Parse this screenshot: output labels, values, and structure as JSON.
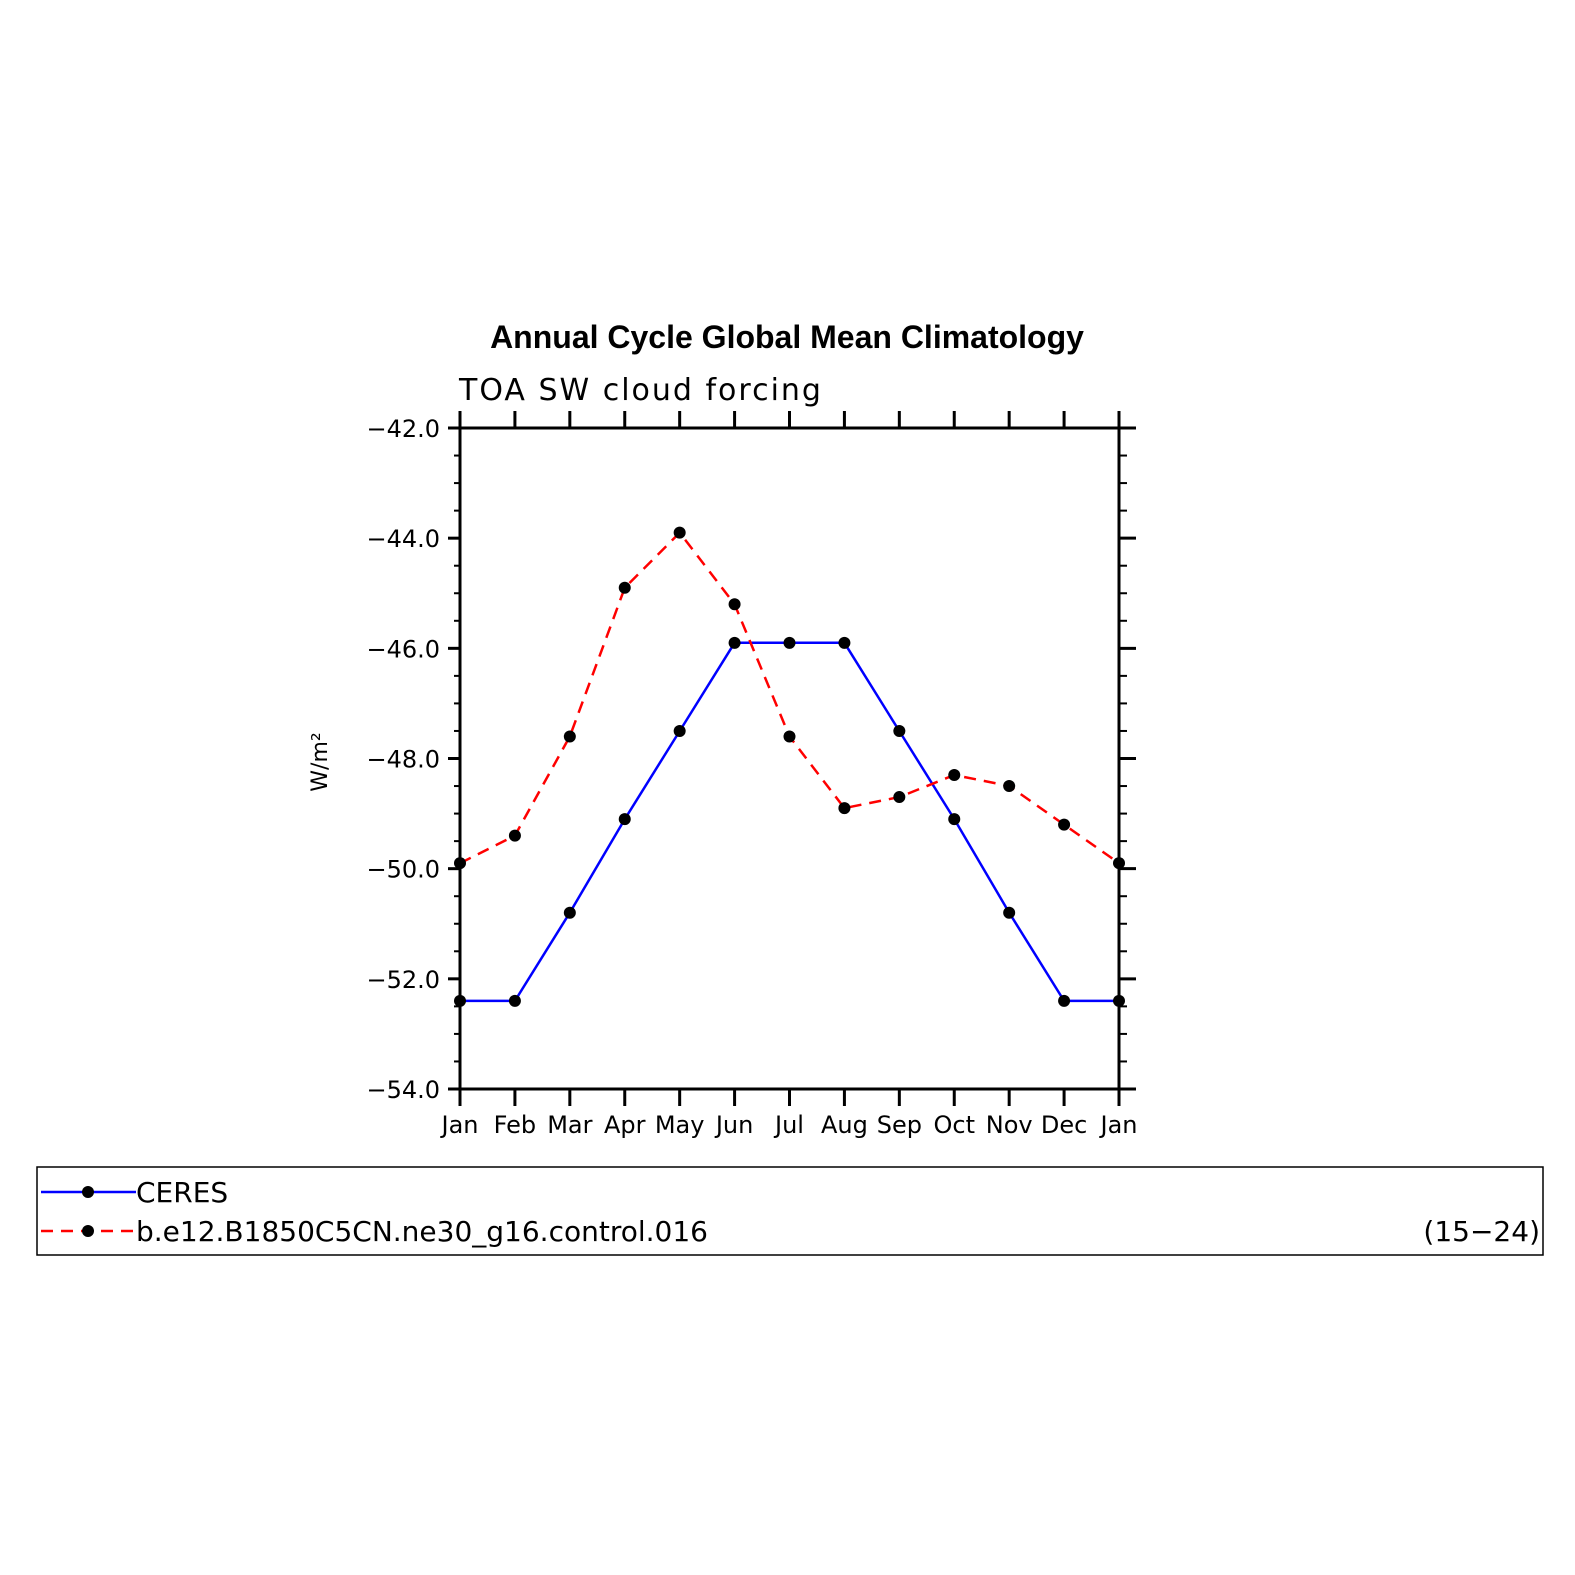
{
  "chart_data": {
    "type": "line",
    "title": "Annual Cycle Global Mean Climatology",
    "subtitle": "TOA SW cloud forcing",
    "ylabel": "W/m²",
    "xlabel": "",
    "ylim": [
      -54.0,
      -42.0
    ],
    "yticks": [
      "-42.0",
      "-44.0",
      "-46.0",
      "-48.0",
      "-50.0",
      "-52.0",
      "-54.0"
    ],
    "ytick_values": [
      -42,
      -44,
      -46,
      -48,
      -50,
      -52,
      -54
    ],
    "categories": [
      "Jan",
      "Feb",
      "Mar",
      "Apr",
      "May",
      "Jun",
      "Jul",
      "Aug",
      "Sep",
      "Oct",
      "Nov",
      "Dec",
      "Jan"
    ],
    "grid": false,
    "legend_position": "bottom",
    "series": [
      {
        "name": "CERES",
        "color": "#0000ff",
        "style": "solid",
        "marker": "dot",
        "values": [
          -52.4,
          -52.4,
          -50.8,
          -49.1,
          -47.5,
          -45.9,
          -45.9,
          -45.9,
          -47.5,
          -49.1,
          -50.8,
          -52.4,
          -52.4
        ]
      },
      {
        "name": "b.e12.B1850C5CN.ne30_g16.control.016",
        "color": "#ff0000",
        "style": "dashed",
        "marker": "dot",
        "values": [
          -49.9,
          -49.4,
          -47.6,
          -44.9,
          -43.9,
          -45.2,
          -47.6,
          -48.9,
          -48.7,
          -48.3,
          -48.5,
          -49.2,
          -49.9
        ]
      }
    ],
    "legend_note": "(15−24)"
  }
}
